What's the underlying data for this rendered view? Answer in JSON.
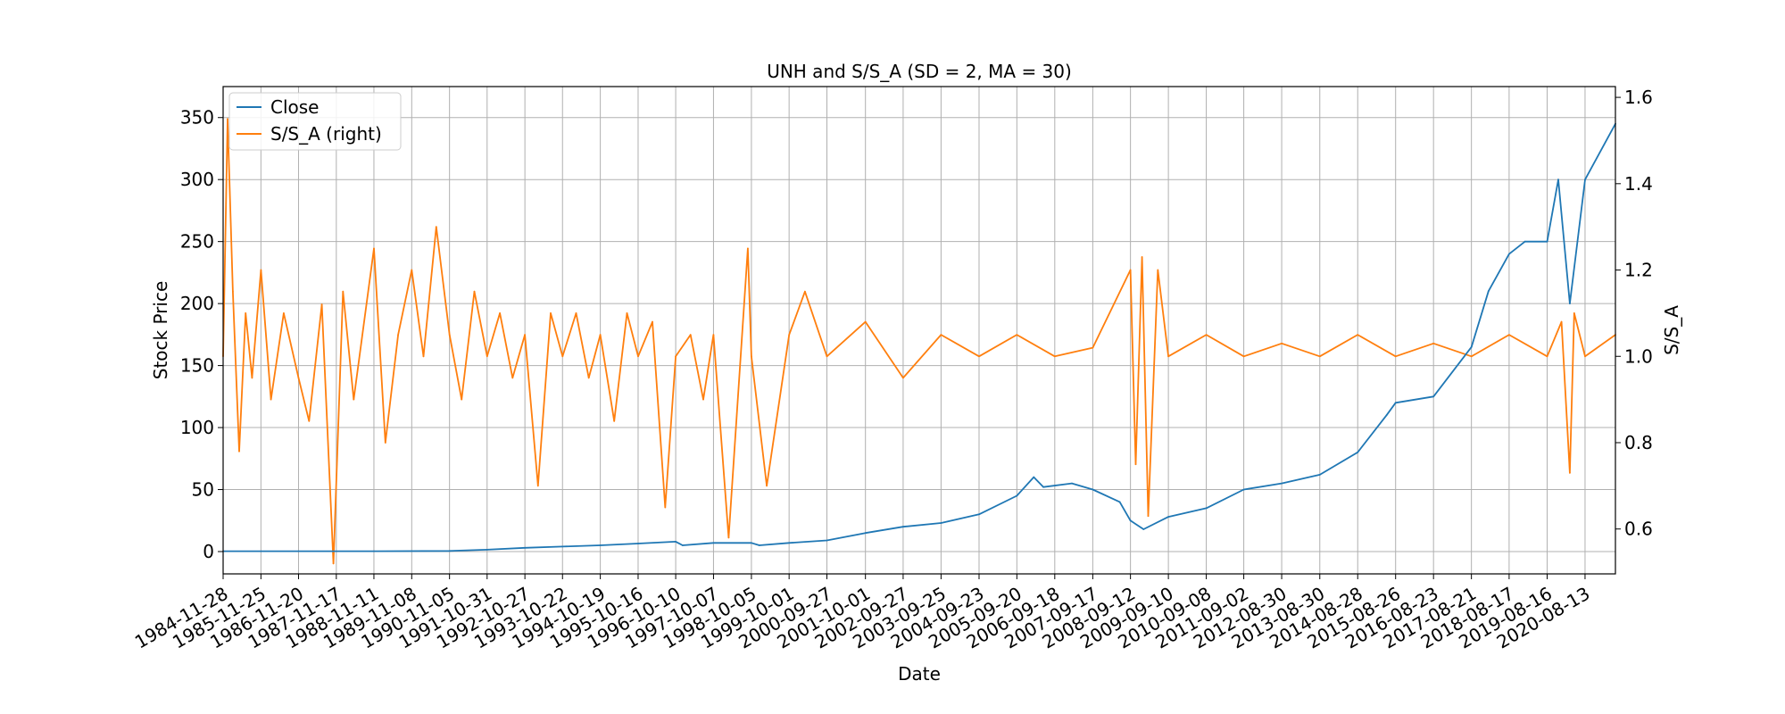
{
  "chart_data": {
    "type": "line",
    "title": "UNH and S/S_A (SD = 2, MA = 30)",
    "xlabel": "Date",
    "ylabel": "Stock Price",
    "ylabel_right": "S/S_A",
    "x_tick_labels": [
      "1984-11-28",
      "1985-11-25",
      "1986-11-20",
      "1987-11-17",
      "1988-11-11",
      "1989-11-08",
      "1990-11-05",
      "1991-10-31",
      "1992-10-27",
      "1993-10-22",
      "1994-10-19",
      "1995-10-16",
      "1996-10-10",
      "1997-10-07",
      "1998-10-05",
      "1999-10-01",
      "2000-09-27",
      "2001-10-01",
      "2002-09-27",
      "2003-09-25",
      "2004-09-23",
      "2005-09-20",
      "2006-09-18",
      "2007-09-17",
      "2008-09-12",
      "2009-09-10",
      "2010-09-08",
      "2011-09-02",
      "2012-08-30",
      "2013-08-30",
      "2014-08-28",
      "2015-08-26",
      "2016-08-23",
      "2017-08-21",
      "2018-08-17",
      "2019-08-16",
      "2020-08-13"
    ],
    "x_range": [
      "1984-11-28",
      "2021-05-31"
    ],
    "y_ticks": [
      0,
      50,
      100,
      150,
      200,
      250,
      300,
      350
    ],
    "ylim": [
      -18,
      375
    ],
    "y_right_ticks": [
      0.6,
      0.8,
      1.0,
      1.2,
      1.4,
      1.6
    ],
    "ylim_right": [
      0.496,
      1.625
    ],
    "grid": true,
    "legend_position": "top-left",
    "series": [
      {
        "name": "Close",
        "axis": "left",
        "color": "#1f77b4",
        "x": [
          "1984-11-28",
          "1986-11-20",
          "1988-11-11",
          "1990-11-05",
          "1991-10-31",
          "1992-10-27",
          "1993-10-22",
          "1994-10-19",
          "1995-10-16",
          "1996-10-10",
          "1996-12-15",
          "1997-10-07",
          "1998-10-05",
          "1998-12-20",
          "1999-10-01",
          "2000-09-27",
          "2001-10-01",
          "2002-09-27",
          "2003-09-25",
          "2004-09-23",
          "2005-09-20",
          "2006-03-01",
          "2006-06-01",
          "2007-03-01",
          "2007-09-17",
          "2008-06-01",
          "2008-09-12",
          "2009-01-15",
          "2009-09-10",
          "2010-09-08",
          "2011-09-02",
          "2012-08-30",
          "2013-08-30",
          "2014-08-28",
          "2015-06-01",
          "2015-08-26",
          "2016-08-23",
          "2017-08-21",
          "2018-02-01",
          "2018-08-17",
          "2019-01-15",
          "2019-08-16",
          "2019-12-01",
          "2020-03-20",
          "2020-08-13",
          "2021-05-31"
        ],
        "values": [
          0.3,
          0.3,
          0.3,
          0.5,
          1.5,
          3,
          4,
          5,
          6.5,
          8,
          5,
          7,
          7,
          5,
          7,
          9,
          15,
          20,
          23,
          30,
          45,
          60,
          52,
          55,
          50,
          40,
          25,
          18,
          28,
          35,
          50,
          55,
          62,
          80,
          110,
          120,
          125,
          165,
          210,
          240,
          250,
          250,
          300,
          200,
          300,
          345
        ]
      },
      {
        "name": "S/S_A (right)",
        "axis": "right",
        "color": "#ff7f0e",
        "x": [
          "1984-11-28",
          "1985-01-10",
          "1985-03-01",
          "1985-05-01",
          "1985-07-01",
          "1985-09-01",
          "1985-11-25",
          "1986-03-01",
          "1986-07-01",
          "1986-11-20",
          "1987-03-01",
          "1987-07-01",
          "1987-10-20",
          "1988-01-20",
          "1988-05-01",
          "1988-11-11",
          "1989-03-01",
          "1989-07-01",
          "1989-11-08",
          "1990-03-01",
          "1990-07-01",
          "1990-11-05",
          "1991-03-01",
          "1991-07-01",
          "1991-10-31",
          "1992-03-01",
          "1992-07-01",
          "1992-10-27",
          "1993-03-01",
          "1993-07-01",
          "1993-10-22",
          "1994-03-01",
          "1994-07-01",
          "1994-10-19",
          "1995-03-01",
          "1995-07-01",
          "1995-10-16",
          "1996-03-01",
          "1996-07-01",
          "1996-10-10",
          "1997-03-01",
          "1997-07-01",
          "1997-10-07",
          "1998-03-01",
          "1998-09-01",
          "1998-10-05",
          "1999-03-01",
          "1999-10-01",
          "2000-03-01",
          "2000-09-27",
          "2001-10-01",
          "2002-09-27",
          "2003-09-25",
          "2004-09-23",
          "2005-09-20",
          "2006-09-18",
          "2007-09-17",
          "2008-09-12",
          "2008-11-01",
          "2009-01-01",
          "2009-03-01",
          "2009-06-01",
          "2009-09-10",
          "2010-09-08",
          "2011-09-02",
          "2012-08-30",
          "2013-08-30",
          "2014-08-28",
          "2015-08-26",
          "2016-08-23",
          "2017-08-21",
          "2018-08-17",
          "2019-08-16",
          "2020-01-01",
          "2020-03-20",
          "2020-05-01",
          "2020-08-13",
          "2021-05-31"
        ],
        "values": [
          1.0,
          1.55,
          1.15,
          0.78,
          1.1,
          0.95,
          1.2,
          0.9,
          1.1,
          0.95,
          0.85,
          1.12,
          0.52,
          1.15,
          0.9,
          1.25,
          0.8,
          1.05,
          1.2,
          1.0,
          1.3,
          1.05,
          0.9,
          1.15,
          1.0,
          1.1,
          0.95,
          1.05,
          0.7,
          1.1,
          1.0,
          1.1,
          0.95,
          1.05,
          0.85,
          1.1,
          1.0,
          1.08,
          0.65,
          1.0,
          1.05,
          0.9,
          1.05,
          0.58,
          1.25,
          1.0,
          0.7,
          1.05,
          1.15,
          1.0,
          1.08,
          0.95,
          1.05,
          1.0,
          1.05,
          1.0,
          1.02,
          1.2,
          0.75,
          1.23,
          0.63,
          1.2,
          1.0,
          1.05,
          1.0,
          1.03,
          1.0,
          1.05,
          1.0,
          1.03,
          1.0,
          1.05,
          1.0,
          1.08,
          0.73,
          1.1,
          1.0,
          1.05
        ]
      }
    ]
  }
}
